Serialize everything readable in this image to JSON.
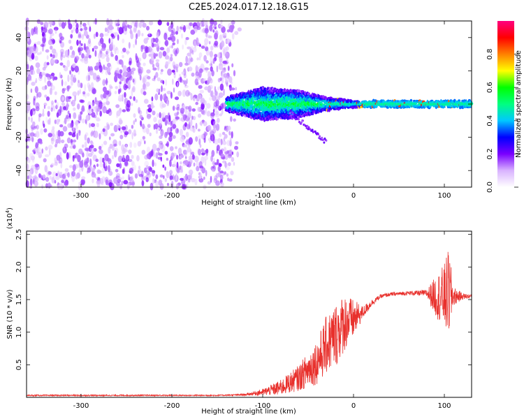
{
  "title": "C2E5.2024.017.12.18.G15",
  "colors": {
    "spectrogram_low": "#c8a6ff",
    "spectrogram_mid": "#6a00ff",
    "snr_line": "#e8302c"
  },
  "chart_data": [
    {
      "type": "heatmap",
      "xlabel": "Height of straight line (km)",
      "ylabel": "Frequency (Hz)",
      "xlim": [
        -360,
        130
      ],
      "ylim": [
        -50,
        50
      ],
      "xticks": [
        -300,
        -200,
        -100,
        0,
        100
      ],
      "yticks": [
        -40,
        -20,
        0,
        20,
        40
      ],
      "colorbar": {
        "label": "Normalized spectral amplitude",
        "range": [
          0.0,
          1.0
        ],
        "ticks": [
          "0.0",
          "0.2",
          "0.4",
          "0.6",
          "0.8"
        ],
        "colormap": [
          "#ffffff",
          "#d9b3ff",
          "#7a00ff",
          "#0000ff",
          "#00c8ff",
          "#00ff80",
          "#00ff00",
          "#ffff00",
          "#ff8000",
          "#ff0000",
          "#ff0080"
        ]
      },
      "features": {
        "noise_region_x": [
          -360,
          -140
        ],
        "signal_start_x": -140,
        "signal_band_center_hz": 0,
        "signal_spread_hz_at_x": [
          [
            -140,
            4
          ],
          [
            -100,
            10
          ],
          [
            -60,
            8
          ],
          [
            -30,
            4
          ],
          [
            0,
            2
          ],
          [
            50,
            2
          ],
          [
            100,
            2
          ],
          [
            130,
            2
          ]
        ]
      }
    },
    {
      "type": "line",
      "xlabel": "Height of straight line (km)",
      "ylabel": "SNR (10 * v/v)",
      "scale_note": "(x10",
      "scale_exp": "4",
      "scale_close": ")",
      "xlim": [
        -360,
        130
      ],
      "ylim": [
        0,
        2.55
      ],
      "xticks": [
        -300,
        -200,
        -100,
        0,
        100
      ],
      "yticks": [
        0.5,
        1.0,
        1.5,
        2.0,
        2.5
      ],
      "ytick_labels": [
        "0.5",
        "1.0",
        "1.5",
        "2.0",
        "2.5"
      ],
      "series": [
        {
          "x": [
            -360,
            -300,
            -200,
            -150,
            -120,
            -100,
            -80,
            -60,
            -40,
            -30,
            -20,
            -10,
            0,
            10,
            20,
            30,
            40,
            60,
            80,
            90,
            100,
            105,
            110,
            120,
            130
          ],
          "y": [
            0.03,
            0.03,
            0.03,
            0.03,
            0.04,
            0.08,
            0.15,
            0.3,
            0.55,
            0.8,
            0.95,
            1.15,
            1.2,
            1.3,
            1.45,
            1.55,
            1.58,
            1.6,
            1.6,
            1.55,
            1.55,
            1.6,
            1.55,
            1.55,
            1.55
          ],
          "noise_amp": [
            0.01,
            0.01,
            0.01,
            0.01,
            0.015,
            0.05,
            0.12,
            0.2,
            0.35,
            0.45,
            0.5,
            0.45,
            0.3,
            0.1,
            0.05,
            0.03,
            0.03,
            0.03,
            0.05,
            0.3,
            0.5,
            0.7,
            0.15,
            0.05,
            0.03
          ]
        }
      ]
    }
  ]
}
